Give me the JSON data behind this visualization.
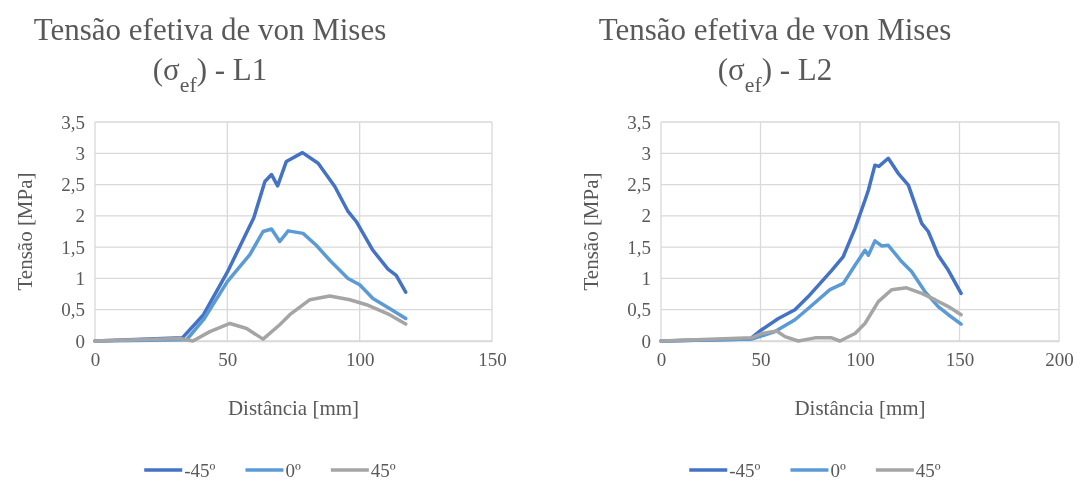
{
  "chart_data": [
    {
      "type": "line",
      "title": "Tensão efetiva de von Mises (σ$_{ef}$) - L1",
      "xlabel": "Distância [mm]",
      "ylabel": "Tensão [MPa]",
      "xlim": [
        0,
        150
      ],
      "xticks": [
        0,
        50,
        100,
        150
      ],
      "ylim": [
        0,
        3.5
      ],
      "yticks": [
        0,
        {
          "value": 0.5,
          "label": "0,5"
        },
        1,
        {
          "value": 1.5,
          "label": "1,5"
        },
        2,
        {
          "value": 2.5,
          "label": "2,5"
        },
        3,
        {
          "value": 3.5,
          "label": "3,5"
        }
      ],
      "grid": true,
      "legend": "bottom",
      "series": [
        {
          "name": "-45º",
          "color": "#4472c4",
          "x": [
            0,
            33,
            41,
            50,
            60,
            64.2,
            66.7,
            69,
            72.3,
            78.4,
            84.3,
            90.6,
            95.6,
            98.7,
            105,
            110.7,
            113.8,
            117.4
          ],
          "values": [
            0,
            0.05,
            0.42,
            1.1,
            1.97,
            2.55,
            2.66,
            2.48,
            2.87,
            3.01,
            2.84,
            2.47,
            2.07,
            1.91,
            1.45,
            1.15,
            1.05,
            0.78
          ]
        },
        {
          "name": "0º",
          "color": "#5b9bd5",
          "x": [
            0,
            34.6,
            41,
            50,
            58.5,
            63.5,
            66.7,
            69.8,
            73,
            78.6,
            83.6,
            88.7,
            95.6,
            100,
            105,
            111.3,
            117.4
          ],
          "values": [
            0,
            0.02,
            0.34,
            0.95,
            1.38,
            1.75,
            1.79,
            1.59,
            1.76,
            1.72,
            1.53,
            1.29,
            1.0,
            0.9,
            0.68,
            0.52,
            0.36
          ]
        },
        {
          "name": "45º",
          "color": "#a5a5a5",
          "x": [
            0,
            32,
            37,
            43.4,
            51,
            57.3,
            63.5,
            69.8,
            73.6,
            81.2,
            88.7,
            96.3,
            102.6,
            111.3,
            117.4
          ],
          "values": [
            0,
            0.04,
            0,
            0.15,
            0.28,
            0.2,
            0.03,
            0.26,
            0.42,
            0.66,
            0.72,
            0.66,
            0.58,
            0.42,
            0.27
          ]
        }
      ]
    },
    {
      "type": "line",
      "title": "Tensão efetiva de von Mises (σ$_{ef}$) - L2",
      "xlabel": "Distância [mm]",
      "ylabel": "Tensão [MPa]",
      "xlim": [
        0,
        200
      ],
      "xticks": [
        0,
        50,
        100,
        150,
        200
      ],
      "ylim": [
        0,
        3.5
      ],
      "yticks": [
        0,
        {
          "value": 0.5,
          "label": "0,5"
        },
        1,
        {
          "value": 1.5,
          "label": "1,5"
        },
        2,
        {
          "value": 2.5,
          "label": "2,5"
        },
        3,
        {
          "value": 3.5,
          "label": "3,5"
        }
      ],
      "grid": true,
      "legend": "bottom",
      "series": [
        {
          "name": "-45º",
          "color": "#4472c4",
          "x": [
            0,
            44.7,
            50.6,
            59,
            67.3,
            74,
            85.8,
            91.6,
            97.5,
            102.5,
            104.2,
            107.5,
            109.5,
            114.2,
            119.2,
            124.3,
            131,
            134.3,
            139.3,
            144.4,
            150.8
          ],
          "values": [
            0,
            0.03,
            0.18,
            0.36,
            0.5,
            0.71,
            1.13,
            1.35,
            1.8,
            2.25,
            2.41,
            2.81,
            2.79,
            2.92,
            2.68,
            2.49,
            1.88,
            1.75,
            1.37,
            1.13,
            0.76
          ]
        },
        {
          "name": "0º",
          "color": "#5b9bd5",
          "x": [
            0,
            45.6,
            57.3,
            67.3,
            74,
            84.9,
            91.6,
            97.5,
            102.5,
            104.2,
            107.5,
            110.9,
            114.2,
            120.9,
            125.9,
            132.6,
            139.3,
            144.4,
            150.8
          ],
          "values": [
            0,
            0.03,
            0.15,
            0.34,
            0.52,
            0.82,
            0.92,
            1.21,
            1.45,
            1.37,
            1.6,
            1.52,
            1.53,
            1.27,
            1.11,
            0.79,
            0.55,
            0.42,
            0.27
          ]
        },
        {
          "name": "45º",
          "color": "#a5a5a5",
          "x": [
            0,
            45.6,
            50.6,
            58.1,
            62.3,
            69,
            77.4,
            85.8,
            89.9,
            97.5,
            102.5,
            109.2,
            115.9,
            123.4,
            131,
            137.7,
            144.4,
            150.8
          ],
          "values": [
            0,
            0.05,
            0.12,
            0.16,
            0.07,
            0,
            0.05,
            0.05,
            0,
            0.12,
            0.28,
            0.63,
            0.82,
            0.85,
            0.76,
            0.66,
            0.55,
            0.42
          ]
        }
      ]
    }
  ]
}
